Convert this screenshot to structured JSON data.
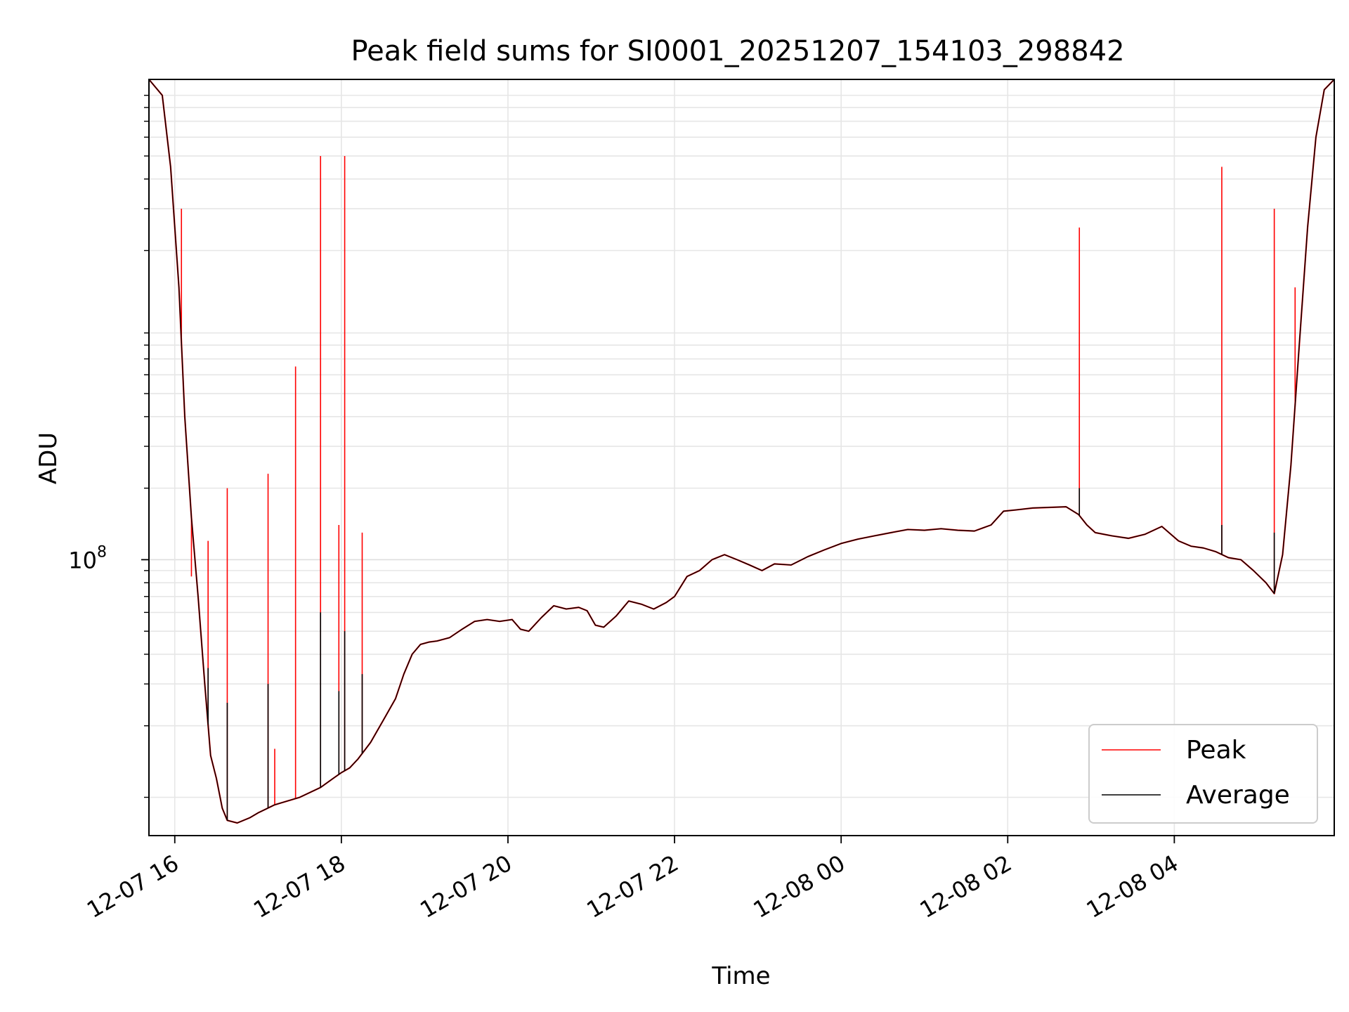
{
  "chart_data": {
    "type": "line",
    "title": "Peak field sums for SI0001_20251207_154103_298842",
    "xlabel": "Time",
    "ylabel": "ADU",
    "yscale": "log",
    "grid": true,
    "legend_position": "lower-right",
    "x_unit": "hours since 2025-12-07 00:00",
    "xlim": [
      15.69,
      29.92
    ],
    "ylim": [
      6900000.0,
      10500000000.0
    ],
    "x_ticks": [
      {
        "label": "12-07 16",
        "value": 16
      },
      {
        "label": "12-07 18",
        "value": 18
      },
      {
        "label": "12-07 20",
        "value": 20
      },
      {
        "label": "12-07 22",
        "value": 22
      },
      {
        "label": "12-08 00",
        "value": 24
      },
      {
        "label": "12-08 02",
        "value": 26
      },
      {
        "label": "12-08 04",
        "value": 28
      }
    ],
    "y_major_ticks": [
      {
        "base": "10",
        "exp": "8",
        "value": 100000000.0
      }
    ],
    "y_minor_ticks": [
      10000000.0,
      20000000.0,
      30000000.0,
      40000000.0,
      50000000.0,
      60000000.0,
      70000000.0,
      80000000.0,
      90000000.0,
      200000000.0,
      300000000.0,
      400000000.0,
      500000000.0,
      600000000.0,
      700000000.0,
      800000000.0,
      900000000.0,
      2000000000.0,
      3000000000.0,
      4000000000.0,
      5000000000.0,
      6000000000.0,
      7000000000.0,
      8000000000.0,
      9000000000.0
    ],
    "series": [
      {
        "name": "Peak",
        "color": "#ff0000",
        "x": [
          15.69,
          15.85,
          15.95,
          16.05,
          16.12,
          16.2,
          16.28,
          16.36,
          16.43,
          16.5,
          16.57,
          16.63,
          16.75,
          16.9,
          17.0,
          17.2,
          17.5,
          17.75,
          17.9,
          18.0,
          18.1,
          18.2,
          18.35,
          18.5,
          18.65,
          18.75,
          18.85,
          18.95,
          19.05,
          19.15,
          19.3,
          19.45,
          19.6,
          19.75,
          19.9,
          20.05,
          20.15,
          20.25,
          20.4,
          20.55,
          20.7,
          20.85,
          20.95,
          21.05,
          21.15,
          21.3,
          21.45,
          21.6,
          21.75,
          21.9,
          22.0,
          22.15,
          22.3,
          22.45,
          22.6,
          22.75,
          22.9,
          23.05,
          23.2,
          23.4,
          23.6,
          23.8,
          24.0,
          24.2,
          24.4,
          24.6,
          24.8,
          25.0,
          25.2,
          25.4,
          25.6,
          25.8,
          25.95,
          26.1,
          26.3,
          26.5,
          26.7,
          26.85,
          26.95,
          27.05,
          27.25,
          27.45,
          27.65,
          27.85,
          28.05,
          28.2,
          28.35,
          28.5,
          28.65,
          28.8,
          28.95,
          29.1,
          29.2,
          29.3,
          29.4,
          29.5,
          29.6,
          29.7,
          29.8,
          29.92
        ],
        "y": [
          10500000000.0,
          9000000000.0,
          4500000000.0,
          1400000000.0,
          400000000.0,
          150000000.0,
          70000000.0,
          30000000.0,
          15000000.0,
          12000000.0,
          9000000.0,
          8000000.0,
          7800000.0,
          8200000.0,
          8600000.0,
          9300000.0,
          10000000.0,
          11000000.0,
          12000000.0,
          12700000.0,
          13300000.0,
          14500000.0,
          17000000.0,
          21000000.0,
          26000000.0,
          33000000.0,
          40000000.0,
          44000000.0,
          45000000.0,
          45500000.0,
          47000000.0,
          51000000.0,
          55000000.0,
          56000000.0,
          55000000.0,
          56000000.0,
          51000000.0,
          50000000.0,
          57000000.0,
          64000000.0,
          62000000.0,
          63000000.0,
          61000000.0,
          53000000.0,
          52000000.0,
          58000000.0,
          67000000.0,
          65000000.0,
          62000000.0,
          66000000.0,
          70000000.0,
          85000000.0,
          90000000.0,
          100000000.0,
          105000000.0,
          100000000.0,
          95000000.0,
          90000000.0,
          96000000.0,
          95000000.0,
          103000000.0,
          110000000.0,
          117000000.0,
          122000000.0,
          126000000.0,
          130000000.0,
          134000000.0,
          133000000.0,
          135000000.0,
          133000000.0,
          132000000.0,
          140000000.0,
          160000000.0,
          162000000.0,
          165000000.0,
          166000000.0,
          167000000.0,
          155000000.0,
          140000000.0,
          130000000.0,
          126000000.0,
          123000000.0,
          128000000.0,
          138000000.0,
          120000000.0,
          114000000.0,
          112000000.0,
          108000000.0,
          102000000.0,
          100000000.0,
          90000000.0,
          80000000.0,
          72000000.0,
          105000000.0,
          250000000.0,
          800000000.0,
          2500000000.0,
          6000000000.0,
          9500000000.0,
          10500000000.0
        ],
        "spikes": [
          {
            "x": 16.08,
            "y": 3000000000.0
          },
          {
            "x": 16.2,
            "y": 85000000.0
          },
          {
            "x": 16.4,
            "y": 120000000.0
          },
          {
            "x": 16.63,
            "y": 200000000.0
          },
          {
            "x": 17.12,
            "y": 230000000.0
          },
          {
            "x": 17.2,
            "y": 16000000.0
          },
          {
            "x": 17.45,
            "y": 650000000.0
          },
          {
            "x": 17.75,
            "y": 5000000000.0
          },
          {
            "x": 17.97,
            "y": 140000000.0
          },
          {
            "x": 18.04,
            "y": 5000000000.0
          },
          {
            "x": 18.25,
            "y": 130000000.0
          },
          {
            "x": 26.86,
            "y": 2500000000.0
          },
          {
            "x": 28.57,
            "y": 4500000000.0
          },
          {
            "x": 29.2,
            "y": 3000000000.0
          },
          {
            "x": 29.45,
            "y": 1400000000.0
          }
        ]
      },
      {
        "name": "Average",
        "color": "#000000",
        "x": [
          15.69,
          15.85,
          15.95,
          16.05,
          16.12,
          16.2,
          16.28,
          16.36,
          16.43,
          16.5,
          16.57,
          16.63,
          16.75,
          16.9,
          17.0,
          17.2,
          17.5,
          17.75,
          17.9,
          18.0,
          18.1,
          18.2,
          18.35,
          18.5,
          18.65,
          18.75,
          18.85,
          18.95,
          19.05,
          19.15,
          19.3,
          19.45,
          19.6,
          19.75,
          19.9,
          20.05,
          20.15,
          20.25,
          20.4,
          20.55,
          20.7,
          20.85,
          20.95,
          21.05,
          21.15,
          21.3,
          21.45,
          21.6,
          21.75,
          21.9,
          22.0,
          22.15,
          22.3,
          22.45,
          22.6,
          22.75,
          22.9,
          23.05,
          23.2,
          23.4,
          23.6,
          23.8,
          24.0,
          24.2,
          24.4,
          24.6,
          24.8,
          25.0,
          25.2,
          25.4,
          25.6,
          25.8,
          25.95,
          26.1,
          26.3,
          26.5,
          26.7,
          26.85,
          26.95,
          27.05,
          27.25,
          27.45,
          27.65,
          27.85,
          28.05,
          28.2,
          28.35,
          28.5,
          28.65,
          28.8,
          28.95,
          29.1,
          29.2,
          29.3,
          29.4,
          29.5,
          29.6,
          29.7,
          29.8,
          29.92
        ],
        "y": [
          10500000000.0,
          9000000000.0,
          4500000000.0,
          1400000000.0,
          400000000.0,
          150000000.0,
          70000000.0,
          30000000.0,
          15000000.0,
          12000000.0,
          9000000.0,
          8000000.0,
          7800000.0,
          8200000.0,
          8600000.0,
          9300000.0,
          10000000.0,
          11000000.0,
          12000000.0,
          12700000.0,
          13300000.0,
          14500000.0,
          17000000.0,
          21000000.0,
          26000000.0,
          33000000.0,
          40000000.0,
          44000000.0,
          45000000.0,
          45500000.0,
          47000000.0,
          51000000.0,
          55000000.0,
          56000000.0,
          55000000.0,
          56000000.0,
          51000000.0,
          50000000.0,
          57000000.0,
          64000000.0,
          62000000.0,
          63000000.0,
          61000000.0,
          53000000.0,
          52000000.0,
          58000000.0,
          67000000.0,
          65000000.0,
          62000000.0,
          66000000.0,
          70000000.0,
          85000000.0,
          90000000.0,
          100000000.0,
          105000000.0,
          100000000.0,
          95000000.0,
          90000000.0,
          96000000.0,
          95000000.0,
          103000000.0,
          110000000.0,
          117000000.0,
          122000000.0,
          126000000.0,
          130000000.0,
          134000000.0,
          133000000.0,
          135000000.0,
          133000000.0,
          132000000.0,
          140000000.0,
          160000000.0,
          162000000.0,
          165000000.0,
          166000000.0,
          167000000.0,
          155000000.0,
          140000000.0,
          130000000.0,
          126000000.0,
          123000000.0,
          128000000.0,
          138000000.0,
          120000000.0,
          114000000.0,
          112000000.0,
          108000000.0,
          102000000.0,
          100000000.0,
          90000000.0,
          80000000.0,
          72000000.0,
          105000000.0,
          250000000.0,
          800000000.0,
          2500000000.0,
          6000000000.0,
          9500000000.0,
          10500000000.0
        ],
        "spikes": [
          {
            "x": 16.4,
            "y": 35000000.0
          },
          {
            "x": 16.63,
            "y": 25000000.0
          },
          {
            "x": 17.12,
            "y": 30000000.0
          },
          {
            "x": 17.75,
            "y": 60000000.0
          },
          {
            "x": 17.97,
            "y": 28000000.0
          },
          {
            "x": 18.04,
            "y": 50000000.0
          },
          {
            "x": 18.25,
            "y": 33000000.0
          },
          {
            "x": 26.86,
            "y": 200000000.0
          },
          {
            "x": 28.57,
            "y": 140000000.0
          },
          {
            "x": 29.2,
            "y": 130000000.0
          }
        ]
      }
    ]
  }
}
